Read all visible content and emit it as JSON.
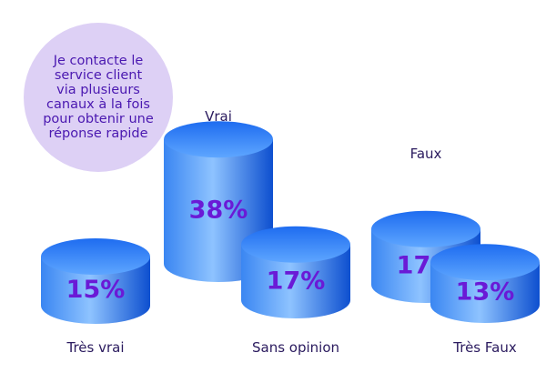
{
  "colors": {
    "cylinder_side_light": "#8ec3ff",
    "cylinder_side_mid": "#3a86f2",
    "cylinder_side_dark": "#0d4fcf",
    "cylinder_top_light": "#5ea6ff",
    "cylinder_top_dark": "#1e6cf0",
    "value_text": "#6a1ad6",
    "label_text": "#2a1a5e",
    "bubble_fill": "#ddd0f5",
    "bubble_text": "#4a18b0"
  },
  "statement": "Je contacte le\nservice client\nvia plusieurs\ncanaux à la fois\npour obtenir une\nréponse rapide",
  "chart_data": {
    "type": "bar",
    "style": "3d-cylinder",
    "title": "",
    "xlabel": "",
    "ylabel": "",
    "categories": [
      "Très vrai",
      "Vrai",
      "Sans opinion",
      "Faux",
      "Très Faux"
    ],
    "values": [
      15,
      38,
      17,
      17,
      13
    ],
    "value_labels": [
      "15%",
      "38%",
      "17%",
      "17%",
      "13%"
    ],
    "unit": "%",
    "ylim": [
      0,
      40
    ],
    "grid": false,
    "legend": "none"
  }
}
